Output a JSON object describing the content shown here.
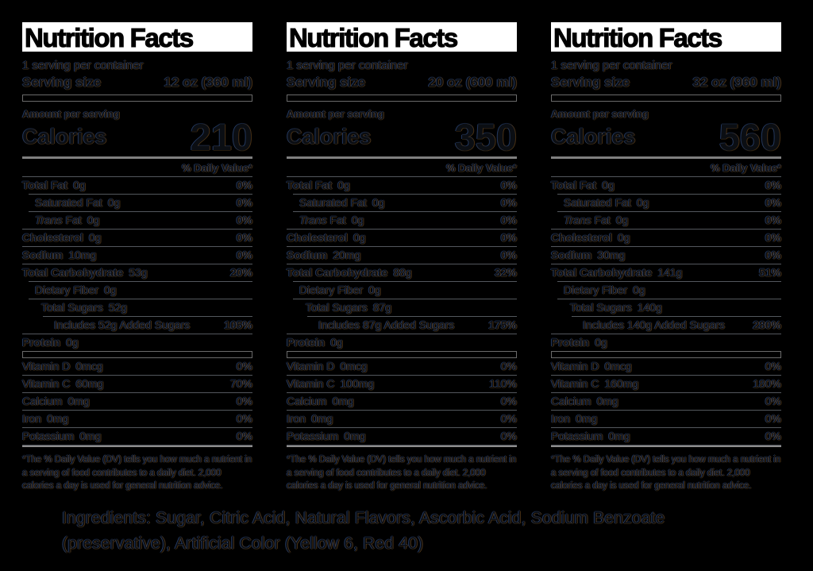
{
  "page": {
    "background": "#000000",
    "line_color": "#53575d",
    "bright_line_color": "#8c8c8c",
    "title_bg": "#ffffff",
    "title_fg": "#000000"
  },
  "labels": [
    {
      "title": "Nutrition Facts",
      "servings_per_container": "1 serving per container",
      "serving_size_label": "Serving size",
      "serving_size_value": "12 oz (360 ml)",
      "amount_per_serving": "Amount per serving",
      "calories_label": "Calories",
      "calories_value": "210",
      "daily_value_header": "% Daily Value*",
      "rows": [
        {
          "name": "Total Fat",
          "amount": "0g",
          "dv": "0%",
          "bold": true,
          "indent": 0
        },
        {
          "name": "Saturated Fat",
          "amount": "0g",
          "dv": "0%",
          "bold": false,
          "indent": 1
        },
        {
          "name_prefix_italic": "Trans",
          "name": "Fat",
          "amount": "0g",
          "dv": "0%",
          "bold": false,
          "indent": 1
        },
        {
          "name": "Cholesterol",
          "amount": "0g",
          "dv": "0%",
          "bold": true,
          "indent": 0
        },
        {
          "name": "Sodium",
          "amount": "10mg",
          "dv": "0%",
          "bold": true,
          "indent": 0
        },
        {
          "name": "Total Carbohydrate",
          "amount": "53g",
          "dv": "20%",
          "bold": true,
          "indent": 0
        },
        {
          "name": "Dietary Fiber",
          "amount": "0g",
          "dv": "",
          "bold": false,
          "indent": 1
        },
        {
          "name": "Total Sugars",
          "amount": "52g",
          "dv": "",
          "bold": false,
          "indent": 2
        },
        {
          "name": "Includes 52g Added Sugars",
          "amount": "",
          "dv": "105%",
          "bold": false,
          "indent": 3
        },
        {
          "name": "Protein",
          "amount": "0g",
          "dv": "",
          "bold": true,
          "indent": 0
        }
      ],
      "vitamins": [
        {
          "name": "Vitamin D",
          "amount": "0mcg",
          "dv": "0%"
        },
        {
          "name": "Vitamin C",
          "amount": "60mg",
          "dv": "70%"
        },
        {
          "name": "Calcium",
          "amount": "0mg",
          "dv": "0%"
        },
        {
          "name": "Iron",
          "amount": "0mg",
          "dv": "0%"
        },
        {
          "name": "Potassium",
          "amount": "0mg",
          "dv": "0%"
        }
      ],
      "footnote": "*The % Daily Value (DV) tells you how much a nutrient in a serving of food contributes to a daily diet. 2,000 calories a day is used for general nutrition advice."
    },
    {
      "title": "Nutrition Facts",
      "servings_per_container": "1 serving per container",
      "serving_size_label": "Serving size",
      "serving_size_value": "20 oz (600 ml)",
      "amount_per_serving": "Amount per serving",
      "calories_label": "Calories",
      "calories_value": "350",
      "daily_value_header": "% Daily Value*",
      "rows": [
        {
          "name": "Total Fat",
          "amount": "0g",
          "dv": "0%",
          "bold": true,
          "indent": 0
        },
        {
          "name": "Saturated Fat",
          "amount": "0g",
          "dv": "0%",
          "bold": false,
          "indent": 1
        },
        {
          "name_prefix_italic": "Trans",
          "name": "Fat",
          "amount": "0g",
          "dv": "0%",
          "bold": false,
          "indent": 1
        },
        {
          "name": "Cholesterol",
          "amount": "0g",
          "dv": "0%",
          "bold": true,
          "indent": 0
        },
        {
          "name": "Sodium",
          "amount": "20mg",
          "dv": "0%",
          "bold": true,
          "indent": 0
        },
        {
          "name": "Total Carbohydrate",
          "amount": "88g",
          "dv": "32%",
          "bold": true,
          "indent": 0
        },
        {
          "name": "Dietary Fiber",
          "amount": "0g",
          "dv": "",
          "bold": false,
          "indent": 1
        },
        {
          "name": "Total Sugars",
          "amount": "87g",
          "dv": "",
          "bold": false,
          "indent": 2
        },
        {
          "name": "Includes 87g Added Sugars",
          "amount": "",
          "dv": "175%",
          "bold": false,
          "indent": 3
        },
        {
          "name": "Protein",
          "amount": "0g",
          "dv": "",
          "bold": true,
          "indent": 0
        }
      ],
      "vitamins": [
        {
          "name": "Vitamin D",
          "amount": "0mcg",
          "dv": "0%"
        },
        {
          "name": "Vitamin C",
          "amount": "100mg",
          "dv": "110%"
        },
        {
          "name": "Calcium",
          "amount": "0mg",
          "dv": "0%"
        },
        {
          "name": "Iron",
          "amount": "0mg",
          "dv": "0%"
        },
        {
          "name": "Potassium",
          "amount": "0mg",
          "dv": "0%"
        }
      ],
      "footnote": "*The % Daily Value (DV) tells you how much a nutrient in a serving of food contributes to a daily diet. 2,000 calories a day is used for general nutrition advice."
    },
    {
      "title": "Nutrition Facts",
      "servings_per_container": "1 serving per container",
      "serving_size_label": "Serving size",
      "serving_size_value": "32 oz (960 ml)",
      "amount_per_serving": "Amount per serving",
      "calories_label": "Calories",
      "calories_value": "560",
      "daily_value_header": "% Daily Value*",
      "rows": [
        {
          "name": "Total Fat",
          "amount": "0g",
          "dv": "0%",
          "bold": true,
          "indent": 0
        },
        {
          "name": "Saturated Fat",
          "amount": "0g",
          "dv": "0%",
          "bold": false,
          "indent": 1
        },
        {
          "name_prefix_italic": "Trans",
          "name": "Fat",
          "amount": "0g",
          "dv": "0%",
          "bold": false,
          "indent": 1
        },
        {
          "name": "Cholesterol",
          "amount": "0g",
          "dv": "0%",
          "bold": true,
          "indent": 0
        },
        {
          "name": "Sodium",
          "amount": "30mg",
          "dv": "0%",
          "bold": true,
          "indent": 0
        },
        {
          "name": "Total Carbohydrate",
          "amount": "141g",
          "dv": "51%",
          "bold": true,
          "indent": 0
        },
        {
          "name": "Dietary Fiber",
          "amount": "0g",
          "dv": "",
          "bold": false,
          "indent": 1
        },
        {
          "name": "Total Sugars",
          "amount": "140g",
          "dv": "",
          "bold": false,
          "indent": 2
        },
        {
          "name": "Includes 140g Added Sugars",
          "amount": "",
          "dv": "280%",
          "bold": false,
          "indent": 3
        },
        {
          "name": "Protein",
          "amount": "0g",
          "dv": "",
          "bold": true,
          "indent": 0
        }
      ],
      "vitamins": [
        {
          "name": "Vitamin D",
          "amount": "0mcg",
          "dv": "0%"
        },
        {
          "name": "Vitamin C",
          "amount": "160mg",
          "dv": "180%"
        },
        {
          "name": "Calcium",
          "amount": "0mg",
          "dv": "0%"
        },
        {
          "name": "Iron",
          "amount": "0mg",
          "dv": "0%"
        },
        {
          "name": "Potassium",
          "amount": "0mg",
          "dv": "0%"
        }
      ],
      "footnote": "*The % Daily Value (DV) tells you how much a nutrient in a serving of food contributes to a daily diet. 2,000 calories a day is used for general nutrition advice."
    }
  ],
  "ingredients": {
    "text": "Ingredients: Sugar, Citric Acid, Natural Flavors, Ascorbic Acid, Sodium Benzoate (preservative), Artificial Color (Yellow 6, Red 40)"
  }
}
